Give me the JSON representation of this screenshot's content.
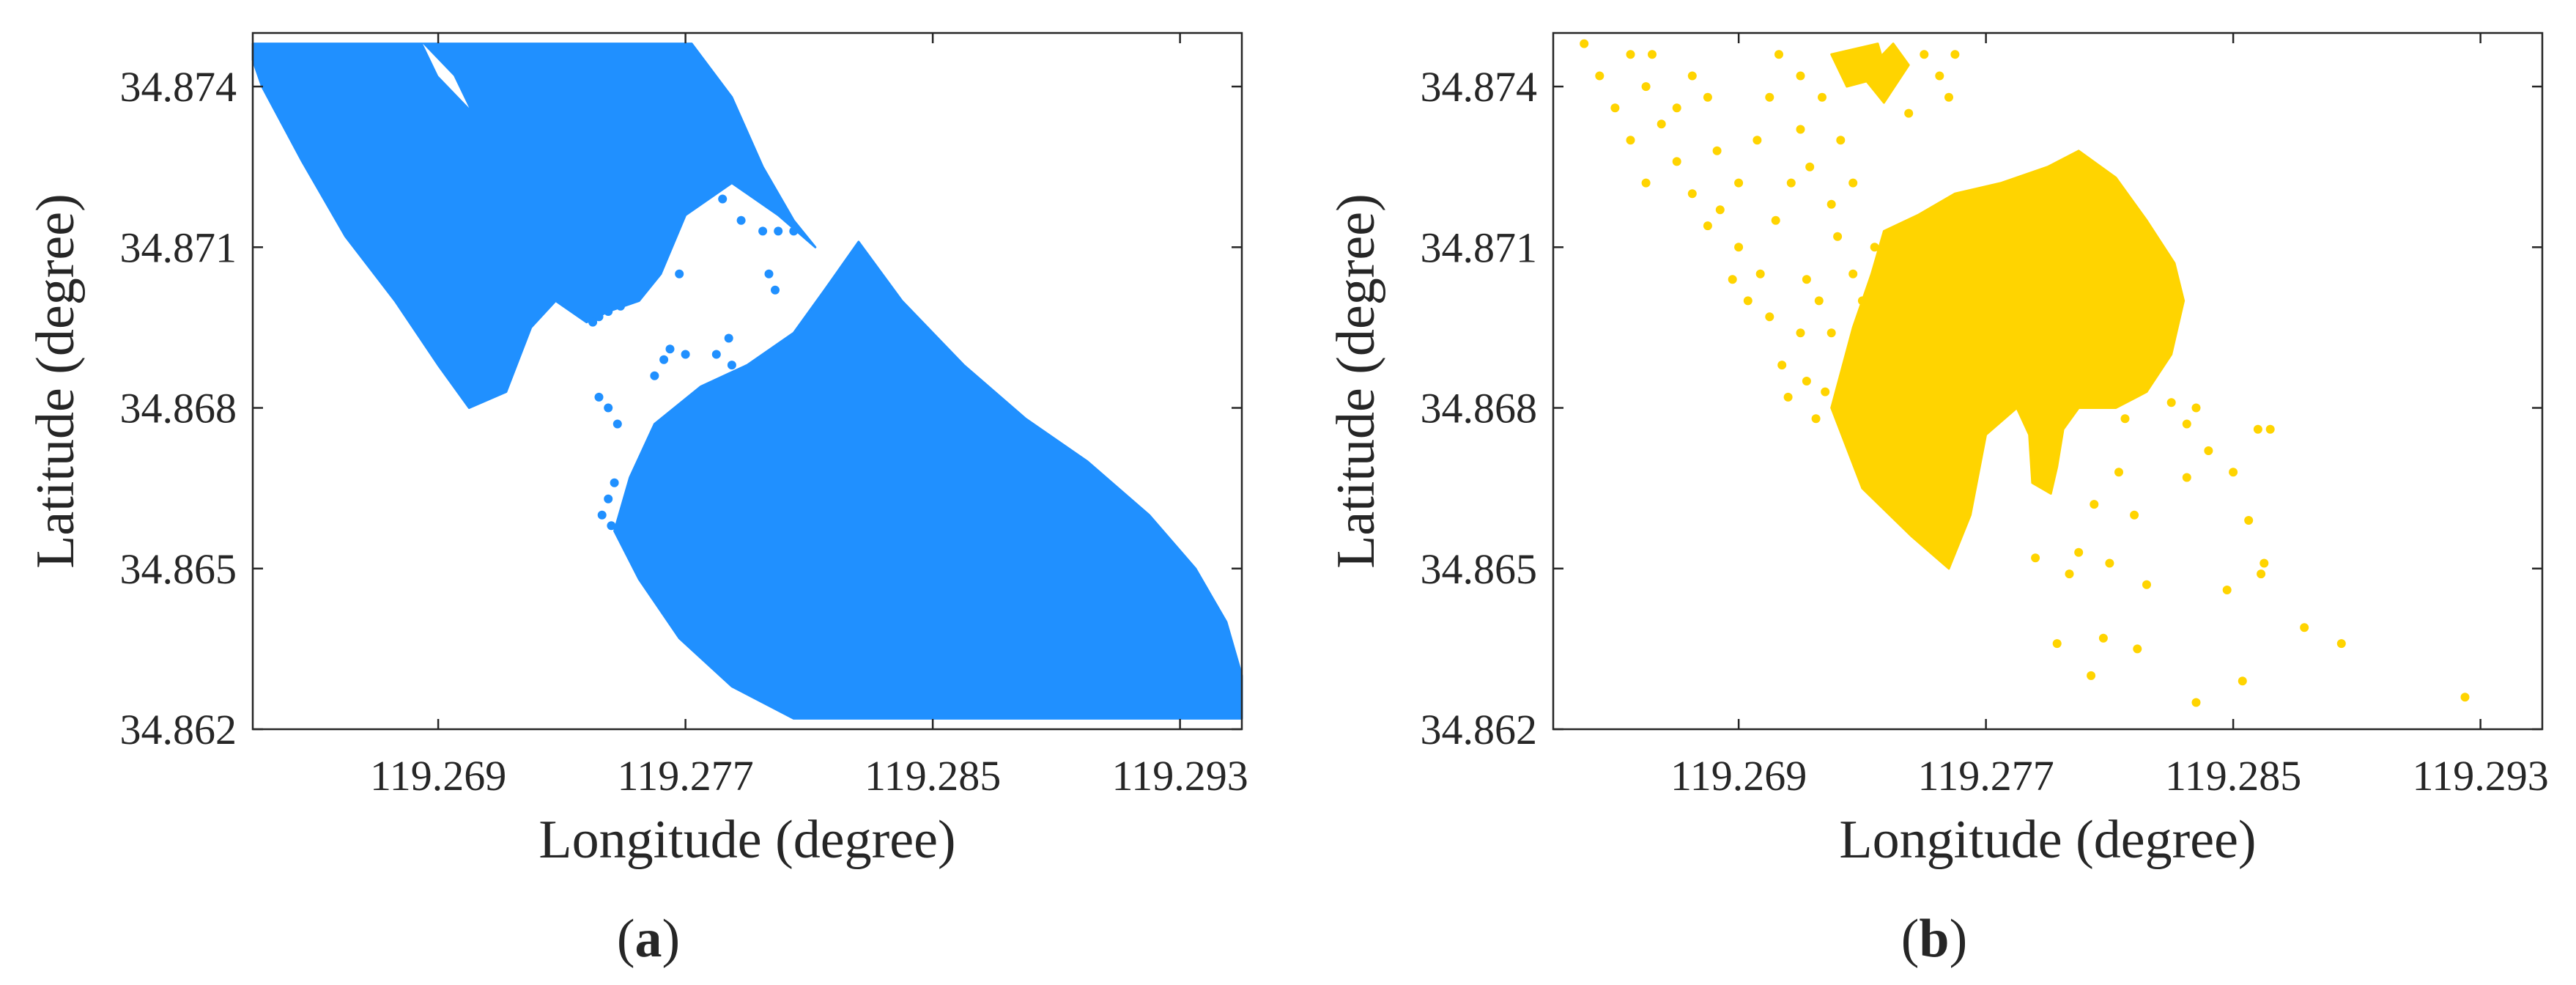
{
  "figure": {
    "panels": [
      {
        "panel_label": "a",
        "color": "#2090FF",
        "chart_data": {
          "type": "scatter",
          "title": "",
          "xlabel": "Longitude (degree)",
          "ylabel": "Latitude (degree)",
          "xlim": [
            119.263,
            119.295
          ],
          "ylim": [
            34.862,
            34.875
          ],
          "xticks": [
            119.269,
            119.277,
            119.285,
            119.293
          ],
          "yticks": [
            34.862,
            34.865,
            34.868,
            34.871,
            34.874
          ],
          "xtick_labels": [
            "119.269",
            "119.277",
            "119.285",
            "119.293"
          ],
          "ytick_labels": [
            "34.862",
            "34.865",
            "34.868",
            "34.871",
            "34.874"
          ],
          "grid": false,
          "legend": "none",
          "regions": [
            {
              "fill": true,
              "points": [
                [
                  119.263,
                  34.8748
                ],
                [
                  119.2772,
                  34.8748
                ],
                [
                  119.2785,
                  34.8738
                ],
                [
                  119.2795,
                  34.8725
                ],
                [
                  119.2805,
                  34.8715
                ],
                [
                  119.2812,
                  34.871
                ],
                [
                  119.28,
                  34.8716
                ],
                [
                  119.2785,
                  34.8722
                ],
                [
                  119.277,
                  34.8716
                ],
                [
                  119.2762,
                  34.8705
                ],
                [
                  119.2755,
                  34.87
                ],
                [
                  119.2745,
                  34.8698
                ],
                [
                  119.2738,
                  34.8696
                ],
                [
                  119.2728,
                  34.87
                ],
                [
                  119.272,
                  34.8695
                ],
                [
                  119.2712,
                  34.8683
                ],
                [
                  119.27,
                  34.868
                ],
                [
                  119.269,
                  34.8688
                ],
                [
                  119.2676,
                  34.87
                ],
                [
                  119.266,
                  34.8712
                ],
                [
                  119.2646,
                  34.8726
                ],
                [
                  119.2633,
                  34.874
                ],
                [
                  119.263,
                  34.8745
                ]
              ]
            },
            {
              "fill": false,
              "points": [
                [
                  119.2685,
                  34.8748
                ],
                [
                  119.2695,
                  34.8742
                ],
                [
                  119.27,
                  34.8736
                ],
                [
                  119.269,
                  34.8742
                ]
              ]
            },
            {
              "fill": true,
              "points": [
                [
                  119.2826,
                  34.8711
                ],
                [
                  119.284,
                  34.87
                ],
                [
                  119.286,
                  34.8688
                ],
                [
                  119.288,
                  34.8678
                ],
                [
                  119.29,
                  34.867
                ],
                [
                  119.292,
                  34.866
                ],
                [
                  119.2935,
                  34.865
                ],
                [
                  119.2945,
                  34.864
                ],
                [
                  119.295,
                  34.863
                ],
                [
                  119.295,
                  34.8622
                ],
                [
                  119.2805,
                  34.8622
                ],
                [
                  119.2785,
                  34.8628
                ],
                [
                  119.2768,
                  34.8637
                ],
                [
                  119.2755,
                  34.8648
                ],
                [
                  119.2747,
                  34.8657
                ],
                [
                  119.2752,
                  34.8667
                ],
                [
                  119.276,
                  34.8677
                ],
                [
                  119.2775,
                  34.8684
                ],
                [
                  119.279,
                  34.8688
                ],
                [
                  119.2805,
                  34.8694
                ],
                [
                  119.2815,
                  34.8702
                ]
              ]
            }
          ],
          "points": [
            [
              119.2768,
              34.8705
            ],
            [
              119.2788,
              34.8715
            ],
            [
              119.2795,
              34.8713
            ],
            [
              119.28,
              34.8713
            ],
            [
              119.2805,
              34.8713
            ],
            [
              119.2797,
              34.8705
            ],
            [
              119.2799,
              34.8702
            ],
            [
              119.2782,
              34.8719
            ],
            [
              119.2745,
              34.8698
            ],
            [
              119.2742,
              34.8697
            ],
            [
              119.2749,
              34.8699
            ],
            [
              119.274,
              34.8696
            ],
            [
              119.278,
              34.869
            ],
            [
              119.2785,
              34.8688
            ],
            [
              119.277,
              34.869
            ],
            [
              119.2763,
              34.8689
            ],
            [
              119.2765,
              34.8691
            ],
            [
              119.276,
              34.8686
            ],
            [
              119.2784,
              34.8693
            ],
            [
              119.2742,
              34.8682
            ],
            [
              119.2745,
              34.868
            ],
            [
              119.2748,
              34.8677
            ],
            [
              119.2743,
              34.866
            ],
            [
              119.2745,
              34.8663
            ],
            [
              119.2747,
              34.8666
            ],
            [
              119.2752,
              34.8662
            ],
            [
              119.2746,
              34.8658
            ]
          ]
        }
      },
      {
        "panel_label": "b",
        "color": "#FFD400",
        "chart_data": {
          "type": "scatter",
          "title": "",
          "xlabel": "Longitude (degree)",
          "ylabel": "Latitude (degree)",
          "xlim": [
            119.263,
            119.295
          ],
          "ylim": [
            34.862,
            34.875
          ],
          "xticks": [
            119.269,
            119.277,
            119.285,
            119.293
          ],
          "yticks": [
            34.862,
            34.865,
            34.868,
            34.871,
            34.874
          ],
          "xtick_labels": [
            "119.269",
            "119.277",
            "119.285",
            "119.293"
          ],
          "ytick_labels": [
            "34.862",
            "34.865",
            "34.868",
            "34.871",
            "34.874"
          ],
          "grid": false,
          "legend": "none",
          "regions": [
            {
              "fill": true,
              "points": [
                [
                  119.2748,
                  34.8716
                ],
                [
                  119.276,
                  34.872
                ],
                [
                  119.2775,
                  34.8722
                ],
                [
                  119.279,
                  34.8725
                ],
                [
                  119.28,
                  34.8728
                ],
                [
                  119.2812,
                  34.8723
                ],
                [
                  119.2822,
                  34.8715
                ],
                [
                  119.2831,
                  34.8707
                ],
                [
                  119.2834,
                  34.87
                ],
                [
                  119.283,
                  34.869
                ],
                [
                  119.2822,
                  34.8683
                ],
                [
                  119.2812,
                  34.868
                ],
                [
                  119.28,
                  34.868
                ],
                [
                  119.2795,
                  34.8676
                ],
                [
                  119.2793,
                  34.8669
                ],
                [
                  119.2791,
                  34.8664
                ],
                [
                  119.2785,
                  34.8666
                ],
                [
                  119.2784,
                  34.8675
                ],
                [
                  119.278,
                  34.868
                ],
                [
                  119.277,
                  34.8675
                ],
                [
                  119.2765,
                  34.866
                ],
                [
                  119.2758,
                  34.865
                ],
                [
                  119.2746,
                  34.8656
                ],
                [
                  119.273,
                  34.8665
                ],
                [
                  119.272,
                  34.868
                ],
                [
                  119.2727,
                  34.8695
                ],
                [
                  119.2733,
                  34.8705
                ],
                [
                  119.2737,
                  34.8713
                ]
              ]
            },
            {
              "fill": true,
              "points": [
                [
                  119.273,
                  34.8742
                ],
                [
                  119.274,
                  34.8748
                ],
                [
                  119.2745,
                  34.8744
                ],
                [
                  119.2737,
                  34.8737
                ]
              ]
            },
            {
              "fill": true,
              "points": [
                [
                  119.272,
                  34.8746
                ],
                [
                  119.2735,
                  34.8748
                ],
                [
                  119.2738,
                  34.8742
                ],
                [
                  119.2725,
                  34.874
                ]
              ]
            }
          ],
          "points": [
            [
              119.264,
              34.8748
            ],
            [
              119.2645,
              34.8742
            ],
            [
              119.265,
              34.8736
            ],
            [
              119.2655,
              34.873
            ],
            [
              119.266,
              34.874
            ],
            [
              119.2665,
              34.8733
            ],
            [
              119.267,
              34.8726
            ],
            [
              119.266,
              34.8722
            ],
            [
              119.2655,
              34.8746
            ],
            [
              119.2662,
              34.8746
            ],
            [
              119.2675,
              34.8742
            ],
            [
              119.268,
              34.8738
            ],
            [
              119.267,
              34.8736
            ],
            [
              119.2683,
              34.8728
            ],
            [
              119.269,
              34.8722
            ],
            [
              119.2675,
              34.872
            ],
            [
              119.268,
              34.8714
            ],
            [
              119.269,
              34.871
            ],
            [
              119.2697,
              34.8705
            ],
            [
              119.2702,
              34.8715
            ],
            [
              119.2707,
              34.8722
            ],
            [
              119.2696,
              34.873
            ],
            [
              119.27,
              34.8738
            ],
            [
              119.271,
              34.8732
            ],
            [
              119.2713,
              34.8725
            ],
            [
              119.272,
              34.8718
            ],
            [
              119.2703,
              34.8746
            ],
            [
              119.271,
              34.8742
            ],
            [
              119.2717,
              34.8738
            ],
            [
              119.2723,
              34.873
            ],
            [
              119.2727,
              34.8722
            ],
            [
              119.2712,
              34.8704
            ],
            [
              119.2716,
              34.87
            ],
            [
              119.272,
              34.8694
            ],
            [
              119.271,
              34.8694
            ],
            [
              119.2704,
              34.8688
            ],
            [
              119.2712,
              34.8685
            ],
            [
              119.2718,
              34.8683
            ],
            [
              119.27,
              34.8697
            ],
            [
              119.2693,
              34.87
            ],
            [
              119.2688,
              34.8704
            ],
            [
              119.2706,
              34.8682
            ],
            [
              119.2715,
              34.8678
            ],
            [
              119.2684,
              34.8717
            ],
            [
              119.2745,
              34.8735
            ],
            [
              119.275,
              34.8746
            ],
            [
              119.2755,
              34.8742
            ],
            [
              119.276,
              34.8746
            ],
            [
              119.2758,
              34.8738
            ],
            [
              119.2734,
              34.871
            ],
            [
              119.2727,
              34.8705
            ],
            [
              119.273,
              34.87
            ],
            [
              119.2722,
              34.8712
            ],
            [
              119.28,
              34.8653
            ],
            [
              119.2805,
              34.8662
            ],
            [
              119.281,
              34.8651
            ],
            [
              119.2813,
              34.8668
            ],
            [
              119.2818,
              34.866
            ],
            [
              119.2822,
              34.8647
            ],
            [
              119.2819,
              34.8635
            ],
            [
              119.2808,
              34.8637
            ],
            [
              119.2804,
              34.863
            ],
            [
              119.2786,
              34.8652
            ],
            [
              119.2793,
              34.8636
            ],
            [
              119.2797,
              34.8649
            ],
            [
              119.2815,
              34.8678
            ],
            [
              119.282,
              34.8684
            ],
            [
              119.283,
              34.8681
            ],
            [
              119.2835,
              34.8677
            ],
            [
              119.2838,
              34.868
            ],
            [
              119.2842,
              34.8672
            ],
            [
              119.285,
              34.8668
            ],
            [
              119.2858,
              34.8676
            ],
            [
              119.2862,
              34.8676
            ],
            [
              119.2855,
              34.8659
            ],
            [
              119.2848,
              34.8646
            ],
            [
              119.286,
              34.8651
            ],
            [
              119.2859,
              34.8649
            ],
            [
              119.2835,
              34.8667
            ],
            [
              119.2838,
              34.8625
            ],
            [
              119.2853,
              34.8629
            ],
            [
              119.2873,
              34.8639
            ],
            [
              119.2885,
              34.8636
            ],
            [
              119.2925,
              34.8626
            ]
          ]
        }
      }
    ]
  }
}
